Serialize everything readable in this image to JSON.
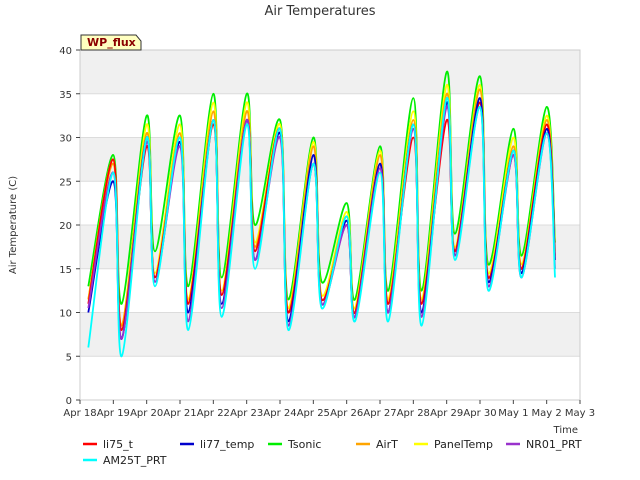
{
  "chart_data": {
    "type": "line",
    "title": "Air Temperatures",
    "xlabel": "Time",
    "ylabel": "Air Temperature (C)",
    "ylim": [
      0,
      40
    ],
    "yticks": [
      0,
      5,
      10,
      15,
      20,
      25,
      30,
      35,
      40
    ],
    "xlim": [
      "2024-04-18",
      "2024-05-03"
    ],
    "xticks": [
      "Apr 18",
      "Apr 19",
      "Apr 20",
      "Apr 21",
      "Apr 22",
      "Apr 23",
      "Apr 24",
      "Apr 25",
      "Apr 26",
      "Apr 27",
      "Apr 28",
      "Apr 29",
      "Apr 30",
      "May 1",
      "May 2",
      "May 3"
    ],
    "grid": "horizontal bands",
    "legend_position": "bottom",
    "badge": "WP_flux",
    "x": [
      "Apr 18 06:00",
      "Apr 19 00:00",
      "Apr 19 06:00",
      "Apr 20 00:00",
      "Apr 20 06:00",
      "Apr 21 00:00",
      "Apr 21 06:00",
      "Apr 22 00:00",
      "Apr 22 06:00",
      "Apr 23 00:00",
      "Apr 23 06:00",
      "Apr 24 00:00",
      "Apr 24 06:00",
      "Apr 25 00:00",
      "Apr 25 06:00",
      "Apr 26 00:00",
      "Apr 26 06:00",
      "Apr 27 00:00",
      "Apr 27 06:00",
      "Apr 28 00:00",
      "Apr 28 06:00",
      "Apr 29 00:00",
      "Apr 29 06:00",
      "Apr 30 00:00",
      "Apr 30 06:00",
      "May 1 00:00",
      "May 1 06:00",
      "May 2 00:00",
      "May 2 06:00"
    ],
    "series": [
      {
        "name": "li75_t",
        "color": "#ff0000",
        "values": [
          11,
          27.5,
          8,
          29,
          14,
          29.5,
          11,
          31.5,
          12,
          32,
          17,
          31,
          10,
          27,
          11.5,
          20,
          10,
          27,
          11,
          30,
          11,
          32,
          17,
          34,
          14,
          28,
          15,
          31.5,
          16
        ]
      },
      {
        "name": "li77_temp",
        "color": "#0000cc",
        "values": [
          10,
          25,
          7,
          30,
          13.5,
          29.5,
          10,
          32,
          11,
          32,
          16,
          30.5,
          9,
          28,
          11,
          20.5,
          9.5,
          27,
          10,
          31.5,
          10,
          34,
          16.5,
          34.5,
          13.5,
          28.5,
          14.5,
          31,
          16
        ]
      },
      {
        "name": "Tsonic",
        "color": "#00ee00",
        "values": [
          13,
          28,
          11,
          32.5,
          17,
          32.5,
          13,
          35,
          14,
          35,
          20,
          32,
          11.5,
          30,
          13.5,
          22.5,
          11.5,
          29,
          12.5,
          34.5,
          12.5,
          37.5,
          19,
          37,
          15.5,
          31,
          16.5,
          33.5,
          18
        ]
      },
      {
        "name": "AirT",
        "color": "#ffa500",
        "values": [
          11.5,
          27,
          8.5,
          30.5,
          14,
          30.5,
          11,
          33,
          12,
          33,
          17.5,
          31,
          10,
          29,
          11.5,
          21,
          10,
          28,
          11,
          32,
          11,
          35,
          17,
          35.5,
          14,
          29,
          15,
          32,
          16.5
        ]
      },
      {
        "name": "PanelTemp",
        "color": "#ffff00",
        "values": [
          11.5,
          27.5,
          8.5,
          31.5,
          14.5,
          31.5,
          11.5,
          34,
          12.5,
          34,
          18,
          31.5,
          10.5,
          29.5,
          12,
          21.5,
          10.5,
          28.5,
          11.5,
          33,
          11.5,
          36,
          17.5,
          36,
          14.5,
          30,
          15.5,
          32.5,
          17
        ]
      },
      {
        "name": "NR01_PRT",
        "color": "#9932cc",
        "values": [
          10.5,
          26,
          7,
          29.5,
          13.5,
          29,
          9,
          32,
          10.5,
          32,
          16,
          30,
          8.5,
          27,
          11,
          20,
          9.5,
          26.5,
          10,
          31,
          9.5,
          33.5,
          16.5,
          33.5,
          13,
          28,
          14,
          30.5,
          15
        ]
      },
      {
        "name": "AM25T_PRT",
        "color": "#00ffff",
        "values": [
          6,
          26,
          5,
          30,
          13,
          30,
          8,
          32,
          9.5,
          31.5,
          15,
          31,
          8,
          27,
          10.5,
          21,
          9,
          26,
          9,
          31.5,
          8.5,
          34.5,
          16,
          33.5,
          12.5,
          28.5,
          14,
          30.5,
          14
        ]
      }
    ]
  }
}
